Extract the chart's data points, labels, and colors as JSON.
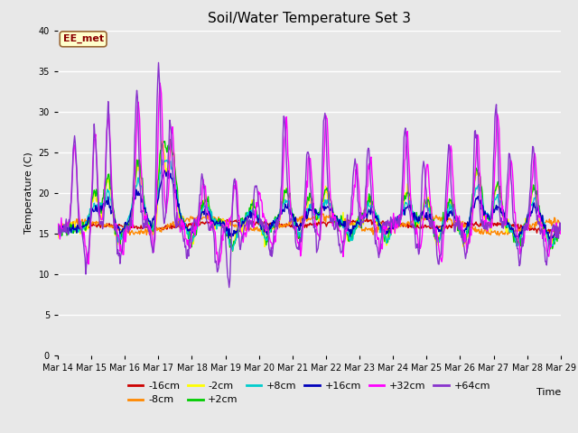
{
  "title": "Soil/Water Temperature Set 3",
  "xlabel": "Time",
  "ylabel": "Temperature (C)",
  "ylim": [
    0,
    40
  ],
  "yticks": [
    0,
    5,
    10,
    15,
    20,
    25,
    30,
    35,
    40
  ],
  "annotation": "EE_met",
  "series_labels": [
    "-16cm",
    "-8cm",
    "-2cm",
    "+2cm",
    "+8cm",
    "+16cm",
    "+32cm",
    "+64cm"
  ],
  "series_colors": [
    "#cc0000",
    "#ff8800",
    "#ffff00",
    "#00cc00",
    "#00cccc",
    "#0000bb",
    "#ff00ff",
    "#8833cc"
  ],
  "date_labels": [
    "Mar 14",
    "Mar 15",
    "Mar 16",
    "Mar 17",
    "Mar 18",
    "Mar 19",
    "Mar 20",
    "Mar 21",
    "Mar 22",
    "Mar 23",
    "Mar 24",
    "Mar 25",
    "Mar 26",
    "Mar 27",
    "Mar 28",
    "Mar 29"
  ],
  "background_color": "#e8e8e8",
  "figsize": [
    6.4,
    4.8
  ],
  "dpi": 100
}
